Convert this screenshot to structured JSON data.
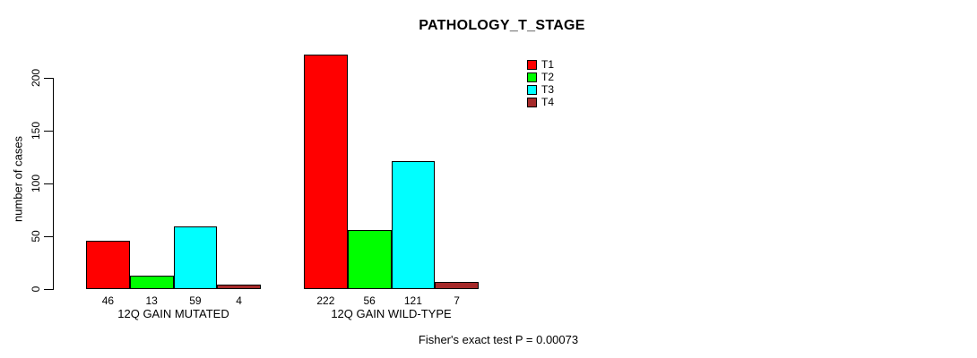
{
  "chart_data": {
    "type": "bar",
    "title": "PATHOLOGY_T_STAGE",
    "ylabel": "number of cases",
    "xlabel": "",
    "categories": [
      "12Q GAIN MUTATED",
      "12Q GAIN WILD-TYPE"
    ],
    "series": [
      {
        "name": "T1",
        "color": "#FF0000",
        "values": [
          46,
          222
        ]
      },
      {
        "name": "T2",
        "color": "#00FF00",
        "values": [
          13,
          56
        ]
      },
      {
        "name": "T3",
        "color": "#00FFFF",
        "values": [
          59,
          121
        ]
      },
      {
        "name": "T4",
        "color": "#A52A2A",
        "values": [
          4,
          7
        ]
      }
    ],
    "yticks": [
      0,
      50,
      100,
      150,
      200
    ],
    "ylim": [
      0,
      200
    ],
    "grid": false,
    "bar_value_labels": true,
    "legend_position": "top-right",
    "annotation": "Fisher's exact test P = 0.00073",
    "axis_color": "#000000",
    "bar_border_color": "#000000",
    "background_color": "#FFFFFF",
    "text_color": "#000000"
  }
}
